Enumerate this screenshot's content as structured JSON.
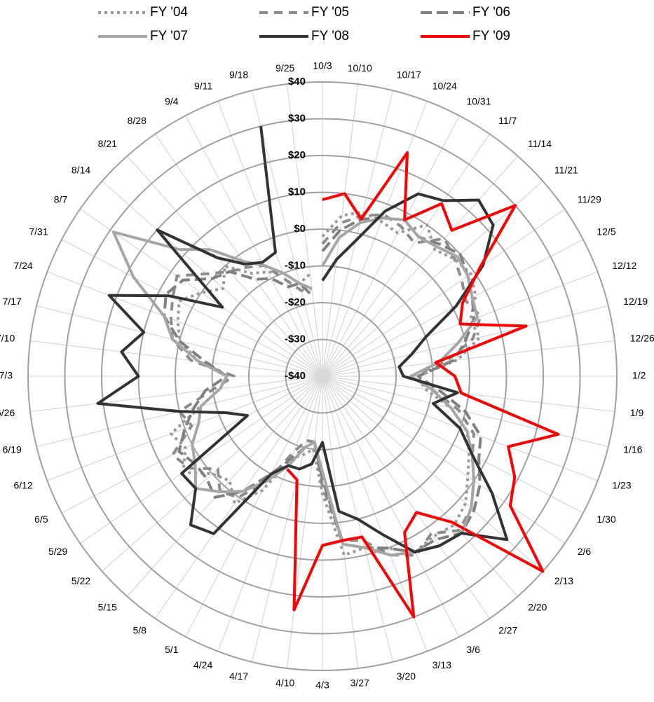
{
  "chart_data": {
    "type": "radar",
    "categories": [
      "10/3",
      "10/10",
      "10/17",
      "10/24",
      "10/31",
      "11/7",
      "11/14",
      "11/21",
      "11/29",
      "12/5",
      "12/12",
      "12/19",
      "12/26",
      "1/2",
      "1/9",
      "1/16",
      "1/23",
      "1/30",
      "2/6",
      "2/13",
      "2/20",
      "2/27",
      "3/6",
      "3/13",
      "3/20",
      "3/27",
      "4/3",
      "4/10",
      "4/17",
      "4/24",
      "5/1",
      "5/8",
      "5/15",
      "5/22",
      "5/29",
      "6/5",
      "6/12",
      "6/19",
      "6/26",
      "7/3",
      "7/10",
      "7/17",
      "7/24",
      "7/31",
      "8/7",
      "8/14",
      "8/21",
      "8/28",
      "9/4",
      "9/11",
      "9/18",
      "9/25"
    ],
    "series": [
      {
        "name": "FY '04",
        "color": "#9a9a9a",
        "dash": "4,5",
        "values": [
          -2,
          4,
          6,
          5,
          4,
          10,
          6,
          8,
          9,
          7,
          3,
          4,
          -3,
          -14,
          -12,
          -4,
          2,
          5,
          8,
          12,
          14,
          13,
          14,
          10,
          8,
          9,
          -8,
          -20,
          -18,
          -16,
          -5,
          2,
          -2,
          0,
          6,
          2,
          4,
          -6,
          -12,
          -14,
          -6,
          0,
          2,
          4,
          0,
          -4,
          0,
          -6,
          -8,
          -10,
          -14,
          -12
        ]
      },
      {
        "name": "FY '05",
        "color": "#8c8c8c",
        "dash": "12,9",
        "values": [
          -4,
          2,
          5,
          7,
          6,
          4,
          10,
          8,
          6,
          4,
          6,
          2,
          -6,
          -16,
          -10,
          -2,
          4,
          6,
          10,
          14,
          16,
          12,
          15,
          12,
          6,
          5,
          -10,
          -22,
          -22,
          -18,
          -8,
          0,
          2,
          -2,
          4,
          6,
          -2,
          0,
          -10,
          -16,
          -4,
          2,
          4,
          6,
          8,
          2,
          -2,
          -4,
          -6,
          -12,
          -16,
          -16
        ]
      },
      {
        "name": "FY '06",
        "color": "#808080",
        "dash": "16,7",
        "values": [
          -6,
          0,
          4,
          6,
          8,
          6,
          8,
          10,
          8,
          6,
          4,
          0,
          -4,
          -14,
          -8,
          0,
          6,
          8,
          12,
          15,
          17,
          14,
          14,
          10,
          8,
          6,
          -12,
          -22,
          -20,
          -16,
          -10,
          -2,
          4,
          2,
          2,
          4,
          0,
          -4,
          -8,
          -14,
          -8,
          0,
          6,
          8,
          6,
          0,
          -2,
          -8,
          -10,
          -14,
          -14,
          -18
        ]
      },
      {
        "name": "FY '07",
        "color": "#a6a6a6",
        "values": [
          -10,
          -2,
          3,
          6,
          8,
          6,
          7,
          9,
          8,
          6,
          5,
          -2,
          -8,
          -16,
          -10,
          -4,
          2,
          6,
          10,
          14,
          17,
          16,
          14,
          12,
          8,
          6,
          -14,
          -22,
          -20,
          -14,
          -8,
          -2,
          2,
          6,
          2,
          0,
          -4,
          -6,
          -12,
          -14,
          -6,
          2,
          6,
          18,
          29,
          12,
          6,
          -2,
          -6,
          -10,
          -14,
          -16
        ]
      },
      {
        "name": "FY '08",
        "color": "#333333",
        "values": [
          -14,
          -8,
          -2,
          8,
          16,
          18,
          24,
          22,
          13,
          1,
          -10,
          -15,
          -19,
          -18,
          -3,
          -9,
          0,
          6,
          16,
          27,
          17,
          16,
          14,
          6,
          0,
          -3,
          -22,
          -16,
          -14,
          -14,
          -10,
          12,
          14,
          6,
          6.5,
          -17,
          -12,
          0,
          21.5,
          10,
          15,
          10,
          22,
          7,
          -7,
          20,
          3,
          -3,
          -5,
          -4,
          30,
          null
        ]
      },
      {
        "name": "FY '09",
        "color": "#ff0000",
        "values": [
          8,
          10,
          4,
          25,
          8,
          17,
          13,
          30,
          12,
          3,
          0,
          17,
          -9,
          -4,
          -2,
          26,
          14,
          19,
          22,
          40,
          13,
          5,
          8,
          30,
          5,
          5,
          6,
          24,
          -11,
          -13,
          null,
          null,
          null,
          null,
          null,
          null,
          null,
          null,
          null,
          null,
          null,
          null,
          null,
          null,
          null,
          null,
          null,
          null,
          null,
          null,
          null,
          null
        ]
      }
    ],
    "ylim": [
      -40,
      40
    ],
    "yticks": [
      {
        "value": -40,
        "label": "-$40"
      },
      {
        "value": -30,
        "label": "-$30"
      },
      {
        "value": -20,
        "label": "-$20"
      },
      {
        "value": -10,
        "label": "-$10"
      },
      {
        "value": 0,
        "label": "$0"
      },
      {
        "value": 10,
        "label": "$10"
      },
      {
        "value": 20,
        "label": "$20"
      },
      {
        "value": 30,
        "label": "$30"
      },
      {
        "value": 40,
        "label": "$40"
      }
    ],
    "grid": true,
    "legend": "top"
  }
}
